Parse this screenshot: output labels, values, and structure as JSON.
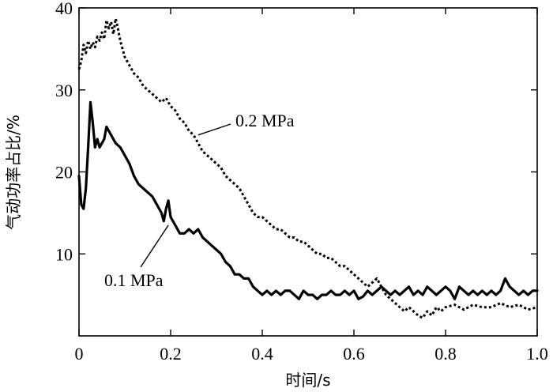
{
  "chart_data": {
    "type": "line",
    "title": "",
    "xlabel": "时间/s",
    "ylabel": "气动功率占比/%",
    "xlim": [
      0,
      1.0
    ],
    "ylim": [
      0,
      40
    ],
    "xticks": [
      "0",
      "0.2",
      "0.4",
      "0.6",
      "0.8",
      "1.0"
    ],
    "yticks": [
      "10",
      "20",
      "30",
      "40"
    ],
    "grid": false,
    "legend": "none",
    "series": [
      {
        "name": "0.2 MPa",
        "style": "dotted",
        "color": "#000000",
        "x": [
          0.0,
          0.005,
          0.01,
          0.015,
          0.02,
          0.025,
          0.03,
          0.035,
          0.04,
          0.045,
          0.05,
          0.055,
          0.06,
          0.065,
          0.07,
          0.075,
          0.08,
          0.085,
          0.09,
          0.1,
          0.11,
          0.12,
          0.13,
          0.14,
          0.15,
          0.16,
          0.17,
          0.18,
          0.19,
          0.2,
          0.21,
          0.22,
          0.23,
          0.24,
          0.25,
          0.26,
          0.27,
          0.28,
          0.29,
          0.3,
          0.31,
          0.32,
          0.33,
          0.34,
          0.35,
          0.36,
          0.37,
          0.38,
          0.39,
          0.4,
          0.41,
          0.42,
          0.43,
          0.44,
          0.45,
          0.46,
          0.47,
          0.48,
          0.49,
          0.5,
          0.51,
          0.52,
          0.53,
          0.54,
          0.55,
          0.56,
          0.57,
          0.58,
          0.59,
          0.6,
          0.61,
          0.62,
          0.63,
          0.64,
          0.65,
          0.66,
          0.67,
          0.68,
          0.69,
          0.7,
          0.71,
          0.72,
          0.73,
          0.74,
          0.75,
          0.76,
          0.77,
          0.78,
          0.79,
          0.8,
          0.82,
          0.84,
          0.86,
          0.88,
          0.9,
          0.92,
          0.94,
          0.96,
          0.98,
          1.0
        ],
        "y": [
          32.5,
          33.5,
          35.5,
          34.5,
          36.0,
          35.0,
          35.8,
          35.2,
          36.5,
          36.0,
          37.0,
          36.2,
          38.5,
          37.5,
          38.3,
          36.8,
          38.7,
          37.5,
          36.0,
          34.0,
          33.0,
          32.0,
          31.5,
          30.5,
          30.0,
          29.5,
          29.0,
          28.5,
          29.0,
          28.0,
          27.5,
          26.5,
          26.0,
          25.0,
          24.5,
          23.5,
          22.5,
          22.0,
          21.5,
          21.0,
          20.5,
          19.5,
          19.0,
          18.5,
          18.0,
          17.0,
          16.0,
          15.0,
          14.5,
          14.5,
          14.0,
          13.5,
          13.0,
          13.0,
          12.5,
          12.0,
          12.0,
          11.5,
          11.5,
          11.0,
          10.5,
          10.0,
          10.0,
          9.5,
          9.5,
          9.0,
          8.5,
          8.5,
          8.0,
          7.5,
          7.0,
          6.5,
          6.0,
          6.5,
          7.0,
          6.0,
          5.0,
          4.5,
          4.0,
          3.5,
          3.0,
          3.5,
          3.0,
          2.5,
          2.2,
          3.0,
          2.5,
          3.5,
          3.0,
          3.5,
          3.8,
          3.2,
          3.8,
          3.5,
          3.5,
          4.0,
          3.5,
          3.8,
          3.2,
          3.5
        ]
      },
      {
        "name": "0.1 MPa",
        "style": "solid",
        "color": "#000000",
        "x": [
          0.0,
          0.005,
          0.01,
          0.015,
          0.02,
          0.025,
          0.03,
          0.035,
          0.04,
          0.045,
          0.05,
          0.055,
          0.06,
          0.065,
          0.07,
          0.075,
          0.08,
          0.09,
          0.1,
          0.11,
          0.12,
          0.13,
          0.14,
          0.15,
          0.16,
          0.17,
          0.18,
          0.185,
          0.19,
          0.195,
          0.2,
          0.21,
          0.22,
          0.23,
          0.24,
          0.25,
          0.26,
          0.27,
          0.28,
          0.29,
          0.3,
          0.31,
          0.32,
          0.33,
          0.34,
          0.35,
          0.36,
          0.37,
          0.38,
          0.39,
          0.4,
          0.41,
          0.42,
          0.43,
          0.44,
          0.45,
          0.46,
          0.47,
          0.48,
          0.49,
          0.5,
          0.51,
          0.52,
          0.53,
          0.54,
          0.55,
          0.56,
          0.57,
          0.58,
          0.59,
          0.6,
          0.61,
          0.62,
          0.63,
          0.64,
          0.65,
          0.66,
          0.67,
          0.68,
          0.69,
          0.7,
          0.71,
          0.72,
          0.73,
          0.74,
          0.75,
          0.76,
          0.77,
          0.78,
          0.79,
          0.8,
          0.81,
          0.82,
          0.83,
          0.84,
          0.85,
          0.86,
          0.87,
          0.88,
          0.89,
          0.9,
          0.91,
          0.92,
          0.93,
          0.94,
          0.95,
          0.96,
          0.97,
          0.98,
          0.99,
          1.0
        ],
        "y": [
          19.5,
          16.0,
          15.5,
          18.0,
          23.0,
          28.5,
          26.0,
          23.0,
          24.0,
          23.0,
          23.5,
          24.0,
          25.5,
          25.0,
          24.5,
          24.0,
          23.5,
          23.0,
          22.0,
          21.0,
          19.5,
          18.5,
          18.0,
          17.5,
          17.0,
          16.0,
          15.0,
          14.0,
          15.5,
          16.5,
          14.5,
          13.5,
          12.5,
          12.5,
          13.0,
          12.5,
          13.0,
          12.0,
          11.5,
          11.0,
          10.5,
          10.0,
          9.0,
          8.5,
          7.5,
          7.5,
          7.0,
          7.0,
          6.0,
          5.5,
          5.0,
          5.5,
          5.0,
          5.5,
          5.0,
          5.5,
          5.5,
          5.0,
          4.5,
          5.5,
          5.0,
          5.0,
          4.5,
          5.0,
          5.0,
          5.5,
          5.0,
          5.0,
          5.5,
          5.0,
          5.5,
          4.5,
          4.8,
          5.5,
          5.0,
          5.5,
          6.0,
          5.5,
          5.0,
          5.5,
          5.0,
          5.5,
          6.0,
          5.0,
          5.5,
          5.0,
          6.0,
          5.5,
          5.0,
          5.5,
          6.0,
          5.5,
          4.5,
          6.0,
          5.5,
          5.0,
          5.5,
          5.0,
          5.5,
          5.0,
          5.5,
          5.0,
          5.5,
          7.0,
          6.0,
          5.5,
          5.0,
          5.5,
          5.0,
          5.5,
          5.5
        ]
      }
    ],
    "annotations": [
      {
        "text": "0.2 MPa",
        "series": "0.2 MPa",
        "arrow_to": [
          0.26,
          24.5
        ]
      },
      {
        "text": "0.1 MPa",
        "series": "0.1 MPa",
        "arrow_to": [
          0.195,
          13.5
        ]
      }
    ]
  }
}
